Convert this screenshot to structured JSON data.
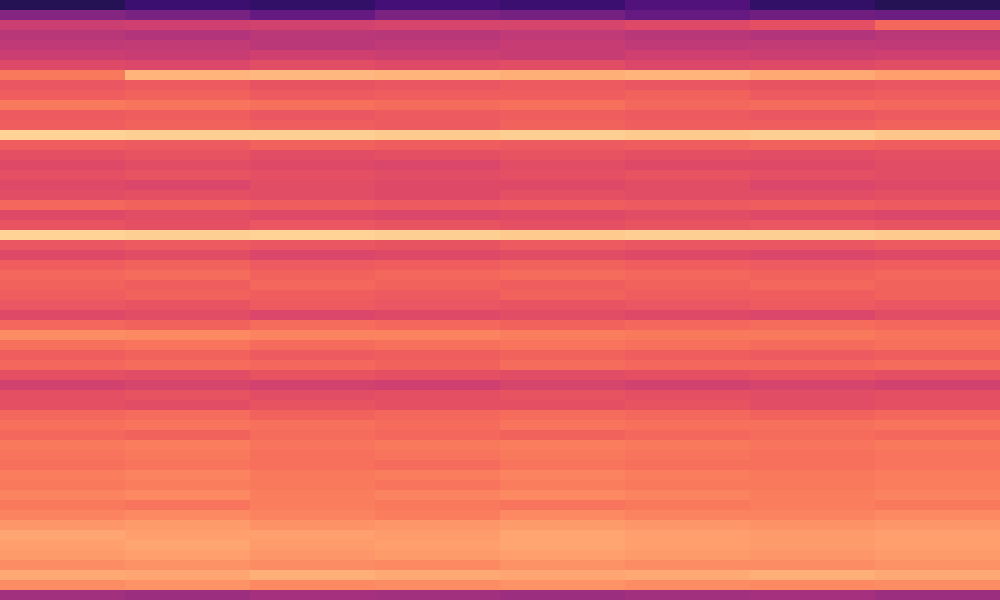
{
  "chart_data": {
    "type": "heatmap",
    "color": "magma",
    "tick_labels": false,
    "zlim": [
      0,
      100
    ],
    "values": [
      [
        15,
        20,
        18,
        22,
        20,
        25,
        18,
        15
      ],
      [
        38,
        35,
        30,
        36,
        34,
        30,
        33,
        32
      ],
      [
        55,
        56,
        57,
        58,
        58,
        60,
        62,
        68
      ],
      [
        50,
        49,
        51,
        50,
        52,
        50,
        49,
        51
      ],
      [
        52,
        53,
        51,
        52,
        54,
        52,
        53,
        52
      ],
      [
        55,
        54,
        56,
        55,
        54,
        56,
        55,
        56
      ],
      [
        60,
        59,
        61,
        60,
        61,
        59,
        60,
        61
      ],
      [
        72,
        84,
        85,
        84,
        83,
        84,
        82,
        80
      ],
      [
        64,
        65,
        63,
        64,
        65,
        64,
        63,
        64
      ],
      [
        66,
        67,
        65,
        66,
        66,
        67,
        65,
        66
      ],
      [
        72,
        71,
        70,
        69,
        70,
        68,
        69,
        68
      ],
      [
        65,
        66,
        64,
        65,
        66,
        65,
        64,
        65
      ],
      [
        66,
        67,
        66,
        65,
        67,
        66,
        66,
        67
      ],
      [
        91,
        90,
        90,
        89,
        90,
        89,
        90,
        88
      ],
      [
        66,
        65,
        67,
        66,
        65,
        66,
        67,
        66
      ],
      [
        62,
        63,
        61,
        62,
        63,
        62,
        61,
        62
      ],
      [
        60,
        61,
        60,
        59,
        61,
        60,
        60,
        61
      ],
      [
        62,
        63,
        62,
        61,
        62,
        63,
        62,
        61
      ],
      [
        60,
        59,
        61,
        60,
        60,
        61,
        59,
        60
      ],
      [
        61,
        62,
        61,
        60,
        62,
        61,
        61,
        62
      ],
      [
        68,
        67,
        66,
        65,
        66,
        65,
        66,
        65
      ],
      [
        60,
        61,
        60,
        59,
        60,
        61,
        60,
        59
      ],
      [
        63,
        62,
        64,
        63,
        62,
        63,
        64,
        63
      ],
      [
        91,
        90,
        91,
        90,
        89,
        90,
        90,
        89
      ],
      [
        64,
        65,
        64,
        63,
        65,
        64,
        64,
        65
      ],
      [
        60,
        61,
        59,
        60,
        61,
        60,
        59,
        60
      ],
      [
        66,
        67,
        65,
        66,
        67,
        66,
        65,
        66
      ],
      [
        68,
        69,
        67,
        68,
        69,
        68,
        67,
        68
      ],
      [
        67,
        66,
        68,
        67,
        66,
        67,
        68,
        67
      ],
      [
        66,
        67,
        66,
        65,
        67,
        66,
        66,
        67
      ],
      [
        64,
        63,
        65,
        64,
        63,
        64,
        65,
        64
      ],
      [
        60,
        61,
        59,
        60,
        61,
        60,
        59,
        61
      ],
      [
        68,
        67,
        69,
        68,
        67,
        68,
        69,
        68
      ],
      [
        76,
        75,
        74,
        74,
        73,
        72,
        72,
        71
      ],
      [
        70,
        71,
        69,
        70,
        71,
        70,
        69,
        70
      ],
      [
        66,
        67,
        65,
        66,
        67,
        66,
        65,
        66
      ],
      [
        68,
        69,
        68,
        67,
        69,
        68,
        68,
        69
      ],
      [
        62,
        61,
        63,
        62,
        61,
        62,
        63,
        62
      ],
      [
        57,
        58,
        57,
        56,
        58,
        57,
        58,
        57
      ],
      [
        62,
        63,
        61,
        62,
        63,
        62,
        61,
        62
      ],
      [
        62,
        61,
        63,
        62,
        62,
        63,
        61,
        62
      ],
      [
        68,
        69,
        67,
        68,
        69,
        68,
        67,
        68
      ],
      [
        70,
        71,
        70,
        69,
        71,
        70,
        70,
        71
      ],
      [
        68,
        67,
        69,
        68,
        67,
        68,
        69,
        68
      ],
      [
        72,
        73,
        71,
        72,
        73,
        72,
        71,
        72
      ],
      [
        71,
        72,
        70,
        71,
        72,
        71,
        70,
        71
      ],
      [
        70,
        71,
        70,
        69,
        71,
        70,
        70,
        71
      ],
      [
        73,
        74,
        72,
        73,
        74,
        73,
        72,
        73
      ],
      [
        72,
        73,
        72,
        71,
        73,
        72,
        72,
        73
      ],
      [
        74,
        75,
        73,
        74,
        75,
        74,
        73,
        74
      ],
      [
        72,
        71,
        73,
        72,
        71,
        72,
        73,
        72
      ],
      [
        74,
        75,
        74,
        73,
        75,
        74,
        74,
        75
      ],
      [
        78,
        79,
        77,
        78,
        79,
        78,
        77,
        78
      ],
      [
        81,
        80,
        80,
        79,
        81,
        80,
        79,
        80
      ],
      [
        80,
        81,
        79,
        80,
        81,
        80,
        79,
        80
      ],
      [
        79,
        80,
        78,
        79,
        80,
        79,
        78,
        79
      ],
      [
        76,
        77,
        76,
        75,
        77,
        76,
        76,
        77
      ],
      [
        82,
        81,
        83,
        82,
        81,
        82,
        83,
        82
      ],
      [
        76,
        77,
        75,
        76,
        77,
        76,
        75,
        76
      ],
      [
        45,
        44,
        46,
        45,
        44,
        45,
        46,
        44
      ]
    ]
  }
}
